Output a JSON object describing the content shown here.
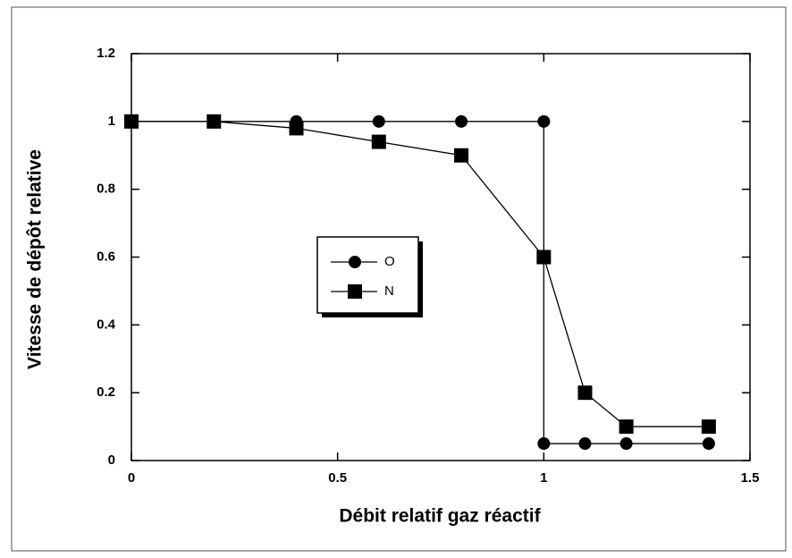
{
  "chart_data": {
    "type": "line",
    "x_label": "Débit relatif gaz réactif",
    "y_label": "Vitesse de dépôt relative",
    "series": [
      {
        "name": "O",
        "color": "#000000",
        "marker": "circle",
        "x": [
          0,
          0.2,
          0.4,
          0.6,
          0.8,
          1,
          1,
          1.1,
          1.2,
          1.4
        ],
        "values": [
          1,
          1,
          1,
          1,
          1,
          1,
          0.05,
          0.05,
          0.05,
          0.05
        ]
      },
      {
        "name": "N",
        "color": "#000000",
        "marker": "square",
        "x": [
          0,
          0.2,
          0.4,
          0.6,
          0.8,
          1,
          1.1,
          1.2,
          1.4
        ],
        "values": [
          1,
          1,
          0.98,
          0.94,
          0.9,
          0.6,
          0.2,
          0.1,
          0.1
        ]
      }
    ],
    "xlim": [
      0,
      1.5
    ],
    "xticks": [
      0,
      0.5,
      1,
      1.5
    ],
    "ylim": [
      0,
      1.2
    ],
    "yticks": [
      0,
      0.2,
      0.4,
      0.6,
      0.8,
      1,
      1.2
    ],
    "grid": false
  }
}
